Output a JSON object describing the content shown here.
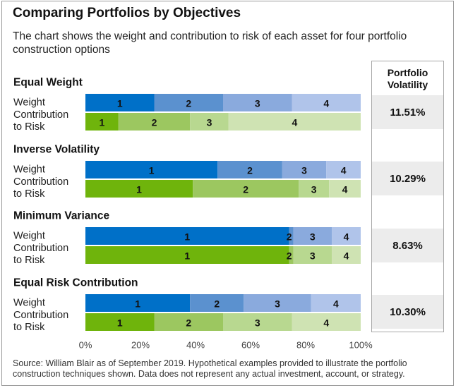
{
  "title": "Comparing Portfolios by Objectives",
  "subtitle": "The chart shows the weight and contribution to risk of each asset for four portfolio construction options",
  "source": "Source: William Blair as of September 2019. Hypothetical examples provided to illustrate the portfolio construction techniques shown. Data does not represent any actual investment, account, or strategy.",
  "volatility_header": "Portfolio Volatility",
  "row_labels": {
    "weight": "Weight",
    "contribution": "Contribution to Risk"
  },
  "colors": {
    "weight": [
      "#0070c8",
      "#5b91cf",
      "#8aaadd",
      "#b0c4ea"
    ],
    "contribution": [
      "#6fb40c",
      "#9cc760",
      "#b8d890",
      "#cfe3b3"
    ]
  },
  "chart_data": {
    "type": "bar",
    "orientation": "horizontal",
    "stacked": true,
    "xlim": [
      0,
      100
    ],
    "xticks": [
      "0%",
      "20%",
      "40%",
      "60%",
      "80%",
      "100%"
    ],
    "groups": [
      {
        "name": "Equal Weight",
        "volatility": "11.51%",
        "weight": {
          "labels": [
            "1",
            "2",
            "3",
            "4"
          ],
          "values": [
            25,
            25,
            25,
            25
          ]
        },
        "contribution": {
          "labels": [
            "1",
            "2",
            "3",
            "4"
          ],
          "values": [
            12,
            26,
            14,
            48
          ]
        }
      },
      {
        "name": "Inverse Volatility",
        "volatility": "10.29%",
        "weight": {
          "labels": [
            "1",
            "2",
            "3",
            "4"
          ],
          "values": [
            48,
            23.5,
            16,
            12.5
          ]
        },
        "contribution": {
          "labels": [
            "1",
            "2",
            "3",
            "4"
          ],
          "values": [
            39,
            38.5,
            11,
            11.5
          ]
        }
      },
      {
        "name": "Minimum Variance",
        "volatility": "8.63%",
        "weight": {
          "labels": [
            "1",
            "2",
            "3",
            "4"
          ],
          "values": [
            74,
            1.5,
            14,
            10.5
          ]
        },
        "contribution": {
          "labels": [
            "1",
            "2",
            "3",
            "4"
          ],
          "values": [
            74,
            1.5,
            14,
            10.5
          ]
        }
      },
      {
        "name": "Equal Risk Contribution",
        "volatility": "10.30%",
        "weight": {
          "labels": [
            "1",
            "2",
            "3",
            "4"
          ],
          "values": [
            38,
            19.5,
            24.5,
            18
          ]
        },
        "contribution": {
          "labels": [
            "1",
            "2",
            "3",
            "4"
          ],
          "values": [
            25,
            25,
            25,
            25
          ]
        }
      }
    ]
  }
}
